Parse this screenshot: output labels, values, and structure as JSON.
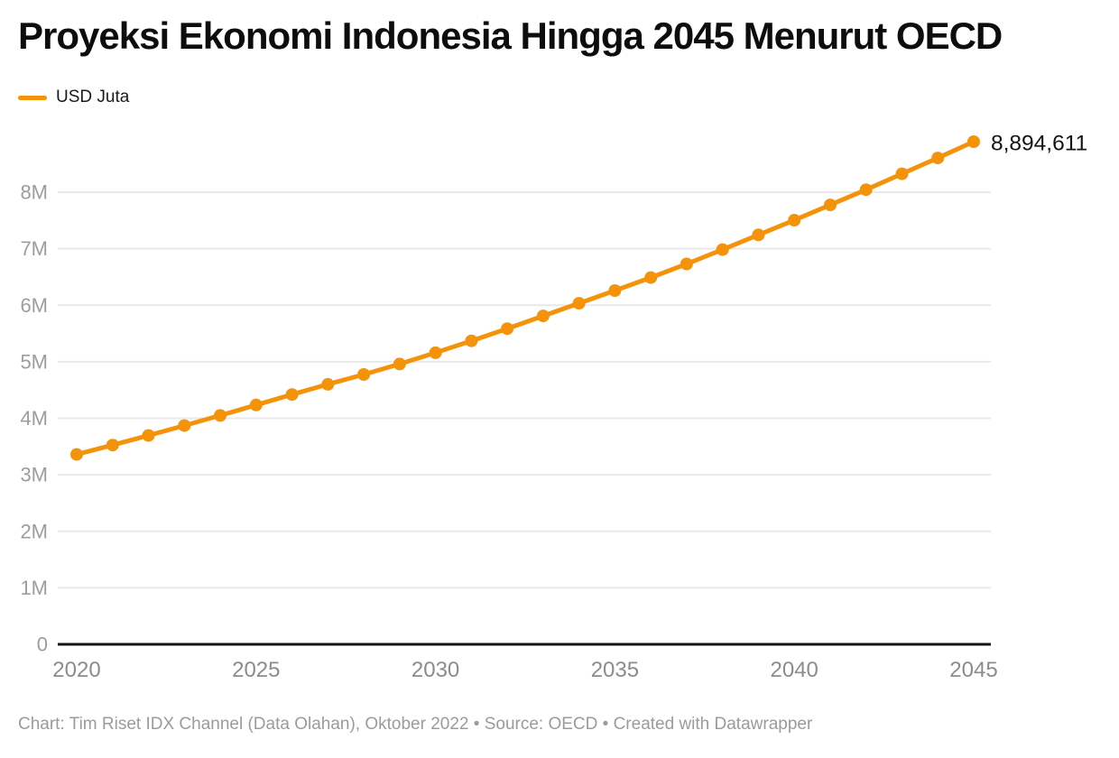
{
  "header": {
    "title": "Proyeksi Ekonomi Indonesia Hingga 2045 Menurut OECD"
  },
  "legend": {
    "series_label": "USD Juta"
  },
  "footer": {
    "text": "Chart: Tim Riset IDX Channel (Data Olahan), Oktober 2022 • Source: OECD • Created with Datawrapper"
  },
  "colors": {
    "series_line": "#f4930a",
    "gridline": "#e9e9e9",
    "axis_baseline": "#141414",
    "y_tick_label": "#9d9d9d",
    "x_tick_label": "#8c8c8c",
    "end_value_label": "#141414",
    "title_text": "#0d0d0d",
    "footer_text": "#9b9b9b"
  },
  "chart_data": {
    "type": "line",
    "title": "Proyeksi Ekonomi Indonesia Hingga 2045 Menurut OECD",
    "xlabel": "",
    "ylabel": "USD Juta",
    "grid": "horizontal-only",
    "legend_position": "top-left",
    "ylim": [
      0,
      9000000
    ],
    "xlim": [
      2020,
      2045
    ],
    "x": [
      2020,
      2021,
      2022,
      2023,
      2024,
      2025,
      2026,
      2027,
      2028,
      2029,
      2030,
      2031,
      2032,
      2033,
      2034,
      2035,
      2036,
      2037,
      2038,
      2039,
      2040,
      2041,
      2042,
      2043,
      2044,
      2045
    ],
    "series": [
      {
        "name": "USD Juta",
        "values": [
          3360000,
          3525000,
          3695000,
          3870000,
          4050000,
          4235000,
          4420000,
          4600000,
          4775000,
          4960000,
          5160000,
          5370000,
          5585000,
          5810000,
          6035000,
          6260000,
          6490000,
          6730000,
          6985000,
          7245000,
          7505000,
          7775000,
          8045000,
          8325000,
          8605000,
          8894611
        ]
      }
    ],
    "x_ticks": [
      {
        "value": 2020,
        "label": "2020"
      },
      {
        "value": 2025,
        "label": "2025"
      },
      {
        "value": 2030,
        "label": "2030"
      },
      {
        "value": 2035,
        "label": "2035"
      },
      {
        "value": 2040,
        "label": "2040"
      },
      {
        "value": 2045,
        "label": "2045"
      }
    ],
    "y_ticks": [
      {
        "value": 0,
        "label": "0"
      },
      {
        "value": 1000000,
        "label": "1M"
      },
      {
        "value": 2000000,
        "label": "2M"
      },
      {
        "value": 3000000,
        "label": "3M"
      },
      {
        "value": 4000000,
        "label": "4M"
      },
      {
        "value": 5000000,
        "label": "5M"
      },
      {
        "value": 6000000,
        "label": "6M"
      },
      {
        "value": 7000000,
        "label": "7M"
      },
      {
        "value": 8000000,
        "label": "8M"
      }
    ],
    "end_annotation": "8,894,611"
  }
}
